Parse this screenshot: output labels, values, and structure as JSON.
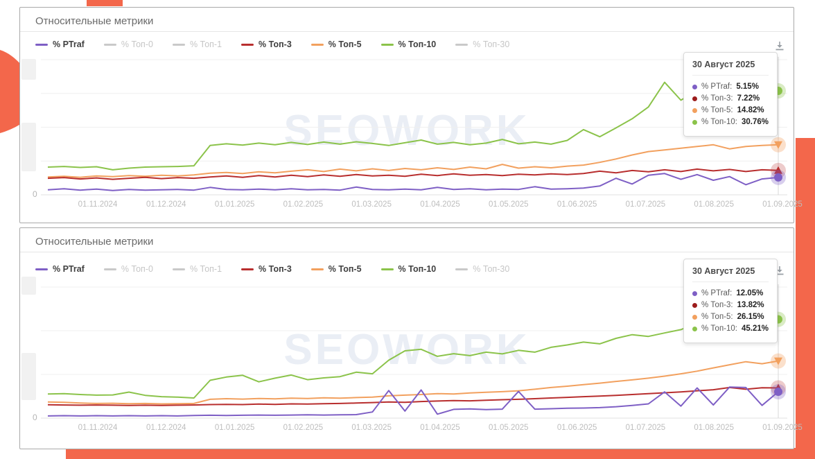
{
  "page": {
    "accent_orange": "#F3674B",
    "card_border": "#a9a9a9",
    "watermark_color": "#eaeef5"
  },
  "chart_data": [
    {
      "type": "line",
      "title": "Относительные метрики",
      "watermark": "SEOWORK",
      "y_zero_label": "0",
      "ylim": [
        0,
        40
      ],
      "y_gridline_step": 10,
      "x_ticks": [
        "01.11.2024",
        "01.12.2024",
        "01.01.2025",
        "01.02.2025",
        "01.03.2025",
        "01.04.2025",
        "01.05.2025",
        "01.06.2025",
        "01.07.2025",
        "01.08.2025",
        "01.09.2025"
      ],
      "legend": [
        {
          "label": "% PTraf",
          "color": "#7E5FC5",
          "enabled": true
        },
        {
          "label": "% Топ-0",
          "color": "#c9c9c9",
          "enabled": false
        },
        {
          "label": "% Топ-1",
          "color": "#c9c9c9",
          "enabled": false
        },
        {
          "label": "% Топ-3",
          "color": "#B82E2E",
          "enabled": true
        },
        {
          "label": "% Топ-5",
          "color": "#F2A05E",
          "enabled": true
        },
        {
          "label": "% Топ-10",
          "color": "#8BC34A",
          "enabled": true
        },
        {
          "label": "% Топ-30",
          "color": "#c9c9c9",
          "enabled": false
        }
      ],
      "series": [
        {
          "name": "% Топ-5",
          "color": "#F2A05E",
          "marker": "triangle-down",
          "values": [
            5.3,
            5.5,
            5.2,
            5.6,
            5.4,
            5.7,
            5.5,
            5.8,
            5.6,
            5.9,
            6.4,
            6.6,
            6.3,
            6.8,
            6.5,
            7.0,
            7.4,
            6.9,
            7.6,
            7.1,
            7.7,
            7.2,
            7.8,
            7.4,
            8.0,
            7.5,
            8.2,
            7.7,
            9.0,
            7.9,
            8.3,
            8.0,
            8.5,
            8.8,
            9.6,
            10.6,
            11.8,
            12.8,
            13.3,
            13.8,
            14.3,
            14.8,
            13.6,
            14.3,
            14.6,
            14.82
          ]
        },
        {
          "name": "% Топ-3",
          "color": "#B82E2E",
          "marker": "triangle-up",
          "values": [
            4.9,
            5.1,
            4.7,
            5.0,
            4.6,
            4.9,
            5.2,
            4.8,
            5.1,
            4.9,
            5.3,
            5.6,
            5.2,
            5.7,
            5.3,
            5.8,
            5.4,
            5.9,
            5.5,
            6.0,
            5.6,
            5.8,
            5.5,
            6.1,
            5.7,
            6.2,
            5.8,
            6.0,
            5.7,
            6.1,
            5.9,
            6.2,
            6.0,
            6.3,
            7.0,
            6.5,
            7.2,
            6.8,
            7.4,
            6.9,
            7.6,
            7.1,
            7.5,
            6.9,
            7.4,
            7.22
          ]
        },
        {
          "name": "% PTraf",
          "color": "#7E5FC5",
          "marker": "circle",
          "values": [
            1.5,
            1.8,
            1.4,
            1.7,
            1.3,
            1.6,
            1.4,
            1.5,
            1.6,
            1.4,
            2.2,
            1.6,
            1.5,
            1.7,
            1.5,
            1.8,
            1.5,
            1.6,
            1.4,
            2.3,
            1.6,
            1.5,
            1.7,
            1.5,
            2.2,
            1.6,
            1.8,
            1.5,
            1.7,
            1.6,
            2.4,
            1.7,
            1.8,
            2.0,
            2.6,
            4.9,
            3.2,
            5.8,
            6.3,
            4.6,
            6.0,
            4.3,
            5.4,
            3.0,
            4.7,
            5.15
          ]
        },
        {
          "name": "% Топ-10",
          "color": "#8BC34A",
          "marker": "circle",
          "values": [
            8.2,
            8.4,
            8.1,
            8.3,
            7.4,
            7.9,
            8.2,
            8.3,
            8.4,
            8.6,
            14.6,
            15.1,
            14.7,
            15.3,
            14.8,
            15.5,
            14.9,
            15.6,
            15.0,
            15.7,
            15.2,
            14.6,
            15.4,
            16.2,
            15.0,
            15.5,
            14.8,
            15.3,
            16.4,
            15.1,
            15.6,
            15.0,
            16.1,
            19.3,
            17.2,
            19.8,
            22.5,
            26.0,
            33.3,
            28.0,
            30.8,
            30.0,
            33.8,
            34.2,
            27.8,
            30.76
          ]
        }
      ],
      "tooltip": {
        "date": "30 Август 2025",
        "rows": [
          {
            "label": "% PTraf:",
            "value": "5.15%",
            "color": "#7E5FC5"
          },
          {
            "label": "% Топ-3:",
            "value": "7.22%",
            "color": "#9c1c1c"
          },
          {
            "label": "% Топ-5:",
            "value": "14.82%",
            "color": "#F2A05E"
          },
          {
            "label": "% Топ-10:",
            "value": "30.76%",
            "color": "#8BC34A"
          }
        ]
      }
    },
    {
      "type": "line",
      "title": "Относительные метрики",
      "watermark": "SEOWORK",
      "y_zero_label": "0",
      "ylim": [
        0,
        60
      ],
      "y_gridline_step": 20,
      "x_ticks": [
        "01.11.2024",
        "01.12.2024",
        "01.01.2025",
        "01.02.2025",
        "01.03.2025",
        "01.04.2025",
        "01.05.2025",
        "01.06.2025",
        "01.07.2025",
        "01.08.2025",
        "01.09.2025"
      ],
      "legend": [
        {
          "label": "% PTraf",
          "color": "#7E5FC5",
          "enabled": true
        },
        {
          "label": "% Топ-0",
          "color": "#c9c9c9",
          "enabled": false
        },
        {
          "label": "% Топ-1",
          "color": "#c9c9c9",
          "enabled": false
        },
        {
          "label": "% Топ-3",
          "color": "#B82E2E",
          "enabled": true
        },
        {
          "label": "% Топ-5",
          "color": "#F2A05E",
          "enabled": true
        },
        {
          "label": "% Топ-10",
          "color": "#8BC34A",
          "enabled": true
        },
        {
          "label": "% Топ-30",
          "color": "#c9c9c9",
          "enabled": false
        }
      ],
      "series": [
        {
          "name": "% Топ-5",
          "color": "#F2A05E",
          "marker": "triangle-down",
          "values": [
            7.4,
            7.2,
            6.9,
            6.7,
            6.8,
            6.6,
            6.7,
            6.5,
            6.6,
            6.7,
            8.6,
            8.9,
            8.7,
            9.0,
            8.8,
            9.1,
            9.0,
            9.3,
            9.1,
            9.4,
            9.6,
            10.2,
            10.5,
            10.8,
            11.2,
            11.0,
            11.5,
            11.8,
            12.1,
            12.5,
            13.2,
            14.0,
            14.6,
            15.3,
            16.0,
            16.8,
            17.5,
            18.3,
            19.2,
            20.3,
            21.5,
            23.0,
            24.4,
            25.8,
            24.9,
            26.15
          ]
        },
        {
          "name": "% Топ-3",
          "color": "#B82E2E",
          "marker": "triangle-up",
          "values": [
            6.1,
            6.0,
            5.9,
            6.0,
            5.9,
            5.8,
            5.9,
            5.8,
            5.9,
            6.0,
            6.2,
            6.3,
            6.2,
            6.4,
            6.3,
            6.5,
            6.4,
            6.6,
            6.7,
            6.9,
            7.1,
            7.4,
            7.2,
            7.6,
            7.8,
            8.0,
            7.9,
            8.2,
            8.4,
            8.6,
            8.9,
            9.2,
            9.5,
            9.8,
            10.1,
            10.4,
            10.8,
            11.2,
            11.6,
            12.0,
            12.5,
            13.0,
            14.0,
            13.2,
            13.9,
            13.82
          ]
        },
        {
          "name": "% PTraf",
          "color": "#7E5FC5",
          "marker": "circle",
          "values": [
            1.0,
            1.1,
            1.0,
            1.1,
            1.0,
            1.1,
            1.0,
            1.1,
            1.0,
            1.2,
            1.3,
            1.2,
            1.3,
            1.4,
            1.3,
            1.4,
            1.5,
            1.4,
            1.5,
            1.6,
            2.8,
            12.6,
            3.2,
            12.9,
            1.8,
            4.0,
            4.2,
            3.9,
            4.1,
            12.2,
            4.1,
            4.3,
            4.5,
            4.6,
            4.8,
            5.2,
            5.8,
            6.5,
            12.0,
            5.5,
            13.8,
            6.0,
            14.2,
            14.0,
            5.8,
            12.05
          ]
        },
        {
          "name": "% Топ-10",
          "color": "#8BC34A",
          "marker": "circle",
          "values": [
            11.0,
            11.2,
            10.8,
            10.5,
            10.6,
            11.9,
            10.4,
            9.8,
            9.6,
            9.2,
            17.3,
            18.8,
            19.6,
            16.6,
            18.3,
            19.7,
            17.6,
            18.4,
            19.0,
            21.0,
            20.3,
            26.5,
            30.8,
            31.5,
            28.3,
            29.5,
            28.6,
            30.2,
            29.4,
            31.0,
            30.2,
            32.4,
            33.5,
            34.8,
            34.0,
            36.5,
            38.2,
            37.4,
            39.0,
            40.5,
            43.5,
            46.3,
            44.0,
            43.2,
            43.8,
            45.21
          ]
        }
      ],
      "tooltip": {
        "date": "30 Август 2025",
        "rows": [
          {
            "label": "% PTraf:",
            "value": "12.05%",
            "color": "#7E5FC5"
          },
          {
            "label": "% Топ-3:",
            "value": "13.82%",
            "color": "#9c1c1c"
          },
          {
            "label": "% Топ-5:",
            "value": "26.15%",
            "color": "#F2A05E"
          },
          {
            "label": "% Топ-10:",
            "value": "45.21%",
            "color": "#8BC34A"
          }
        ]
      }
    }
  ]
}
